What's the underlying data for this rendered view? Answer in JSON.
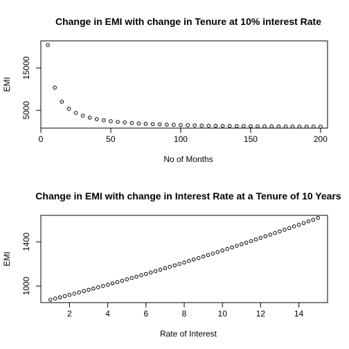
{
  "chart_data": [
    {
      "type": "scatter",
      "title": "Change in EMI with change in Tenure at 10% interest Rate",
      "xlabel": "No of Months",
      "ylabel": "EMI",
      "xlim": [
        0,
        205
      ],
      "ylim": [
        800,
        21400
      ],
      "xticks": [
        0,
        50,
        100,
        150,
        200
      ],
      "yticks": [
        5000,
        15000
      ],
      "marker": "open-circle",
      "x": [
        5,
        10,
        15,
        20,
        25,
        30,
        35,
        40,
        45,
        50,
        55,
        60,
        65,
        70,
        75,
        80,
        85,
        90,
        95,
        100,
        105,
        110,
        115,
        120,
        125,
        130,
        135,
        140,
        145,
        150,
        155,
        160,
        165,
        170,
        175,
        180,
        185,
        190,
        195,
        200
      ],
      "y": [
        20420,
        10362,
        7028,
        5373,
        4385,
        3731,
        3266,
        2921,
        2653,
        2441,
        2268,
        2125,
        2005,
        1903,
        1816,
        1740,
        1674,
        1616,
        1565,
        1520,
        1479,
        1443,
        1410,
        1380,
        1353,
        1328,
        1306,
        1285,
        1266,
        1248,
        1232,
        1217,
        1203,
        1190,
        1178,
        1167,
        1156,
        1146,
        1137,
        1129
      ]
    },
    {
      "type": "scatter",
      "title": "Change in EMI with change in Interest Rate at a Tenure of 10 Years",
      "xlabel": "Rate of Interest",
      "ylabel": "EMI",
      "xlim": [
        0.5,
        15.5
      ],
      "ylim": [
        850,
        1640
      ],
      "xticks": [
        2,
        4,
        6,
        8,
        10,
        12,
        14
      ],
      "yticks": [
        1000,
        1400
      ],
      "marker": "open-circle",
      "x": [
        1,
        1.25,
        1.5,
        1.75,
        2,
        2.25,
        2.5,
        2.75,
        3,
        3.25,
        3.5,
        3.75,
        4,
        4.25,
        4.5,
        4.75,
        5,
        5.25,
        5.5,
        5.75,
        6,
        6.25,
        6.5,
        6.75,
        7,
        7.25,
        7.5,
        7.75,
        8,
        8.25,
        8.5,
        8.75,
        9,
        9.25,
        9.5,
        9.75,
        10,
        10.25,
        10.5,
        10.75,
        11,
        11.25,
        11.5,
        11.75,
        12,
        12.25,
        12.5,
        12.75,
        13,
        13.25,
        13.5,
        13.75,
        14,
        14.25,
        14.5,
        14.75,
        15
      ],
      "y": [
        876,
        887,
        898,
        909,
        920,
        931,
        943,
        954,
        966,
        977,
        989,
        1001,
        1012,
        1024,
        1036,
        1048,
        1061,
        1073,
        1085,
        1098,
        1110,
        1123,
        1135,
        1148,
        1161,
        1174,
        1187,
        1200,
        1213,
        1227,
        1240,
        1253,
        1267,
        1281,
        1294,
        1308,
        1322,
        1336,
        1350,
        1364,
        1378,
        1393,
        1407,
        1421,
        1436,
        1451,
        1465,
        1480,
        1495,
        1510,
        1525,
        1540,
        1555,
        1570,
        1586,
        1601,
        1617
      ]
    }
  ]
}
